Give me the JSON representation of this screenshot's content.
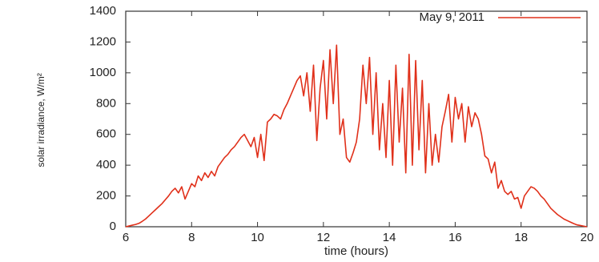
{
  "chart_data": {
    "type": "line",
    "xlabel": "time (hours)",
    "ylabel": "solar irradiance, W/m²",
    "x": [
      6.0,
      6.1,
      6.2,
      6.3,
      6.4,
      6.5,
      6.6,
      6.7,
      6.8,
      6.9,
      7.0,
      7.1,
      7.2,
      7.3,
      7.4,
      7.5,
      7.6,
      7.7,
      7.8,
      7.9,
      8.0,
      8.1,
      8.2,
      8.3,
      8.4,
      8.5,
      8.6,
      8.7,
      8.8,
      8.9,
      9.0,
      9.1,
      9.2,
      9.3,
      9.4,
      9.5,
      9.6,
      9.7,
      9.8,
      9.9,
      10.0,
      10.1,
      10.2,
      10.3,
      10.4,
      10.5,
      10.6,
      10.7,
      10.8,
      10.9,
      11.0,
      11.1,
      11.2,
      11.3,
      11.4,
      11.5,
      11.6,
      11.7,
      11.8,
      11.9,
      12.0,
      12.1,
      12.2,
      12.3,
      12.4,
      12.5,
      12.6,
      12.7,
      12.8,
      12.9,
      13.0,
      13.1,
      13.2,
      13.3,
      13.4,
      13.5,
      13.6,
      13.7,
      13.8,
      13.9,
      14.0,
      14.1,
      14.2,
      14.3,
      14.4,
      14.5,
      14.6,
      14.7,
      14.8,
      14.9,
      15.0,
      15.1,
      15.2,
      15.3,
      15.4,
      15.5,
      15.6,
      15.7,
      15.8,
      15.9,
      16.0,
      16.1,
      16.2,
      16.3,
      16.4,
      16.5,
      16.6,
      16.7,
      16.8,
      16.9,
      17.0,
      17.1,
      17.2,
      17.3,
      17.4,
      17.5,
      17.6,
      17.7,
      17.8,
      17.9,
      18.0,
      18.1,
      18.2,
      18.3,
      18.4,
      18.5,
      18.6,
      18.7,
      18.8,
      18.9,
      19.0,
      19.1,
      19.2,
      19.3,
      19.4,
      19.5,
      19.6,
      19.7,
      19.8,
      19.9,
      20.0
    ],
    "series": [
      {
        "name": "May 9, 2011",
        "color": "#e0301a",
        "values": [
          0,
          5,
          10,
          15,
          22,
          35,
          50,
          70,
          90,
          110,
          130,
          150,
          175,
          200,
          230,
          250,
          220,
          260,
          180,
          230,
          280,
          260,
          330,
          300,
          350,
          320,
          360,
          330,
          390,
          420,
          450,
          470,
          500,
          520,
          550,
          580,
          600,
          560,
          520,
          580,
          450,
          600,
          430,
          680,
          700,
          730,
          720,
          700,
          760,
          800,
          850,
          900,
          950,
          980,
          850,
          1000,
          750,
          1050,
          560,
          900,
          1080,
          700,
          1150,
          800,
          1180,
          600,
          700,
          450,
          420,
          480,
          550,
          700,
          1050,
          800,
          1100,
          600,
          1000,
          500,
          800,
          450,
          950,
          400,
          1050,
          550,
          900,
          350,
          1120,
          400,
          1080,
          500,
          950,
          350,
          800,
          400,
          600,
          420,
          650,
          750,
          860,
          550,
          840,
          700,
          800,
          550,
          780,
          650,
          740,
          700,
          600,
          460,
          440,
          350,
          420,
          250,
          300,
          230,
          210,
          230,
          180,
          190,
          120,
          200,
          230,
          260,
          250,
          230,
          200,
          180,
          150,
          120,
          100,
          80,
          65,
          50,
          40,
          30,
          20,
          12,
          8,
          4,
          0
        ]
      }
    ],
    "xlim": [
      6,
      20
    ],
    "ylim": [
      0,
      1400
    ],
    "xticks": [
      6,
      8,
      10,
      12,
      14,
      16,
      18,
      20
    ],
    "yticks": [
      0,
      200,
      400,
      600,
      800,
      1000,
      1200,
      1400
    ],
    "legend": "top-right"
  }
}
